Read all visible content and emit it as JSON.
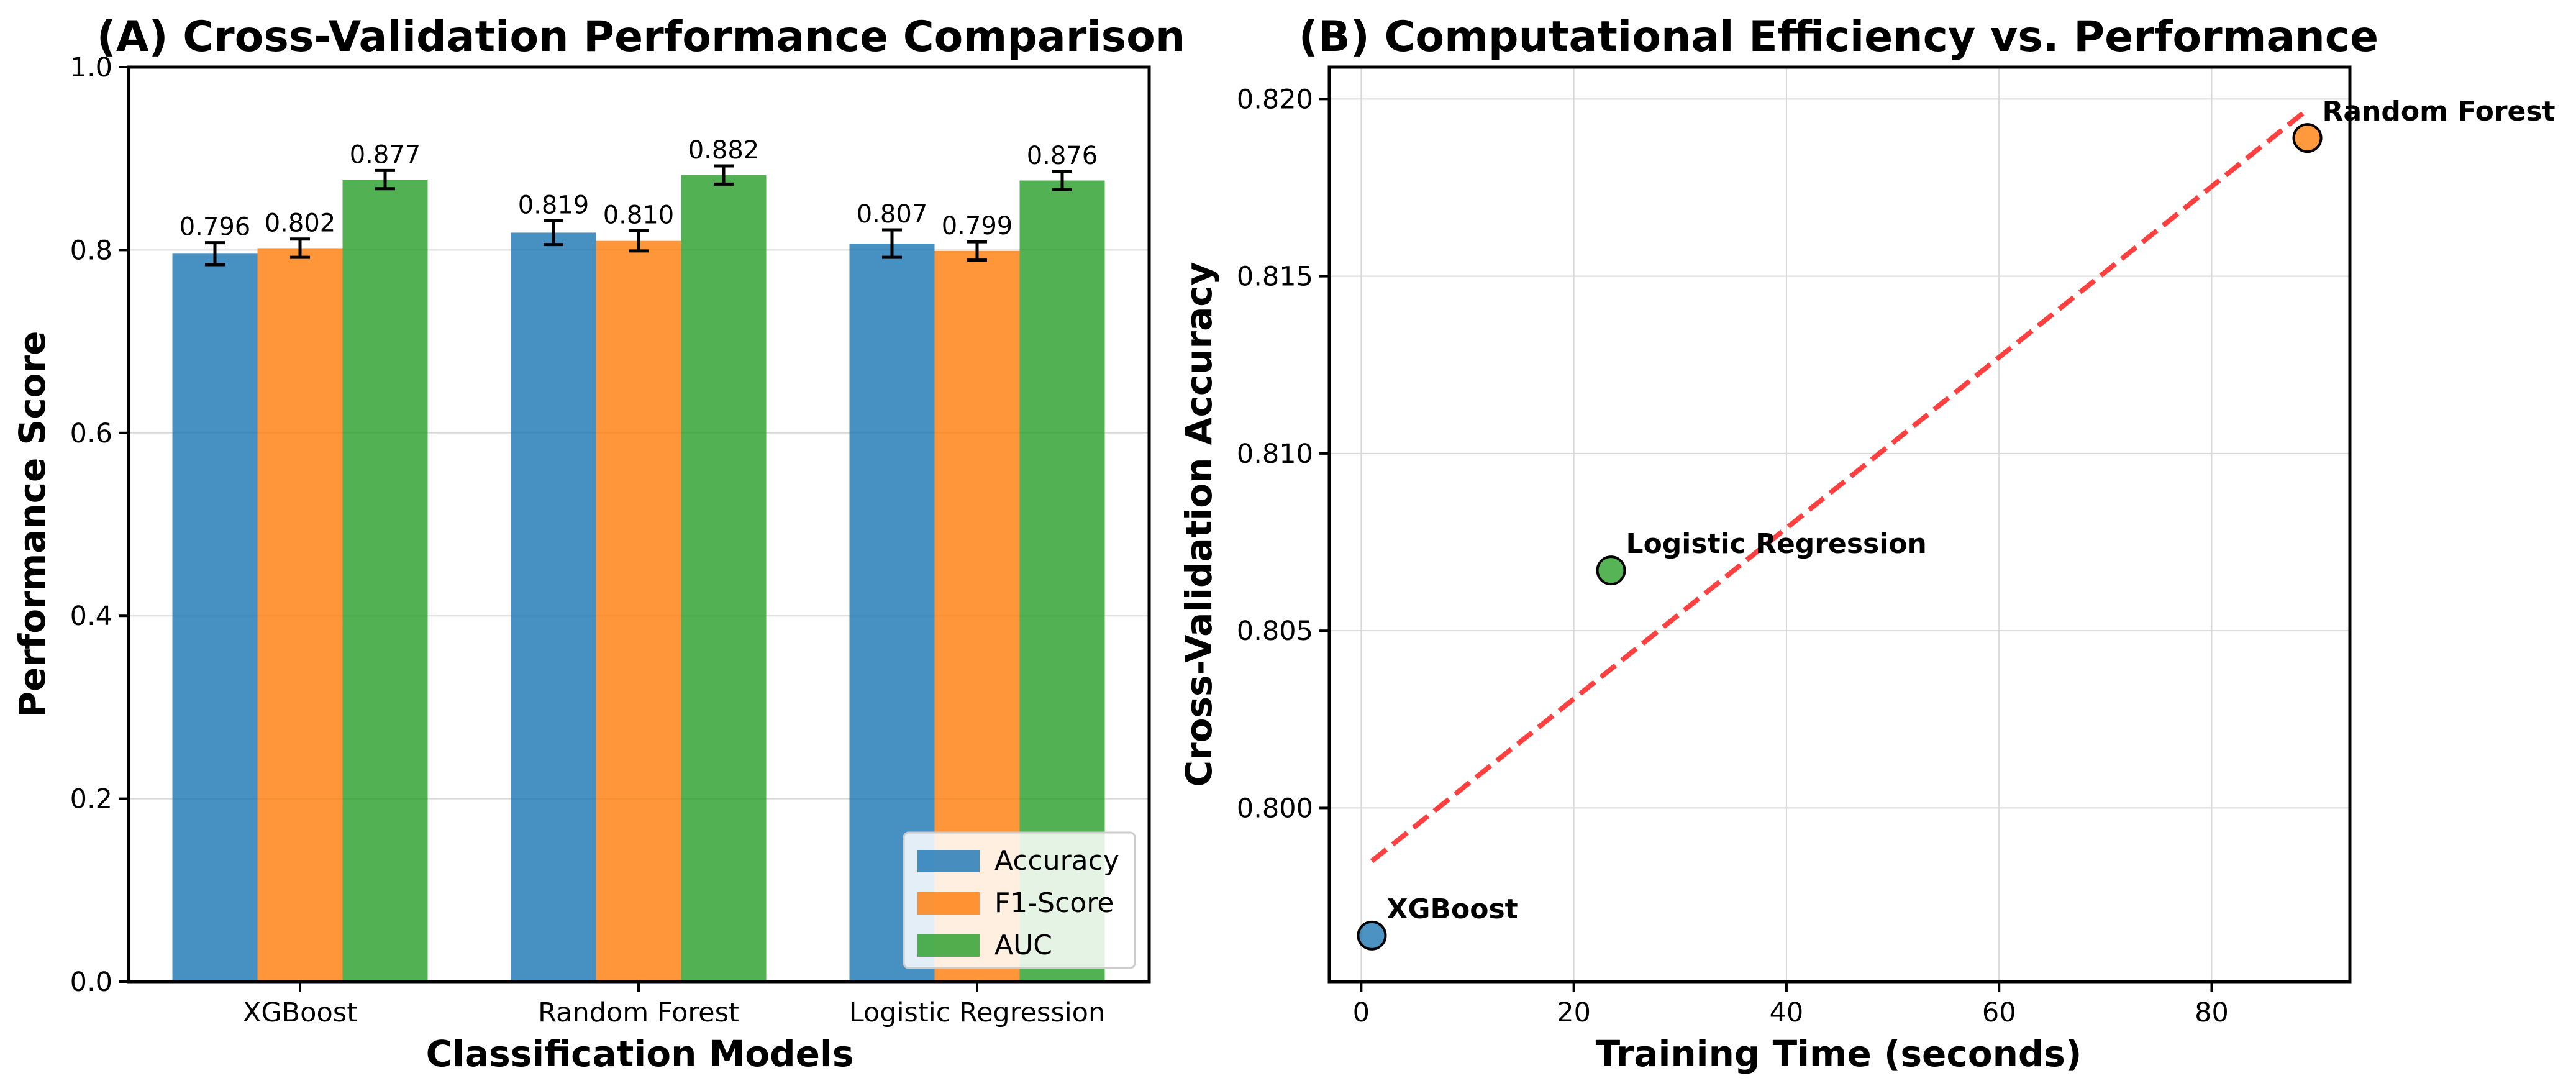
{
  "chart_data": [
    {
      "type": "bar",
      "title": "(A) Cross-Validation Performance Comparison",
      "xlabel": "Classification Models",
      "ylabel": "Performance Score",
      "categories": [
        "XGBoost",
        "Random Forest",
        "Logistic Regression"
      ],
      "ylim": [
        0,
        1.0
      ],
      "yticks": [
        "0.0",
        "0.2",
        "0.4",
        "0.6",
        "0.8",
        "1.0"
      ],
      "grid": true,
      "legend_position": "lower-right",
      "series": [
        {
          "name": "Accuracy",
          "color": "#1f77b4",
          "values": [
            0.796,
            0.819,
            0.807
          ],
          "labels": [
            "0.796",
            "0.819",
            "0.807"
          ],
          "errors": [
            0.012,
            0.013,
            0.015
          ]
        },
        {
          "name": "F1-Score",
          "color": "#ff7f0e",
          "values": [
            0.802,
            0.81,
            0.799
          ],
          "labels": [
            "0.802",
            "0.810",
            "0.799"
          ],
          "errors": [
            0.01,
            0.011,
            0.01
          ]
        },
        {
          "name": "AUC",
          "color": "#2ca02c",
          "values": [
            0.877,
            0.882,
            0.876
          ],
          "labels": [
            "0.877",
            "0.882",
            "0.876"
          ],
          "errors": [
            0.01,
            0.01,
            0.01
          ]
        }
      ]
    },
    {
      "type": "scatter",
      "title": "(B) Computational Efficiency vs. Performance",
      "xlabel": "Training Time (seconds)",
      "ylabel": "Cross-Validation Accuracy",
      "xlim": [
        -3,
        93
      ],
      "ylim": [
        0.7951,
        0.8209
      ],
      "xticks": [
        "0",
        "20",
        "40",
        "60",
        "80"
      ],
      "yticks": [
        "0.800",
        "0.805",
        "0.810",
        "0.815",
        "0.820"
      ],
      "grid": true,
      "points": [
        {
          "label": "XGBoost",
          "x": 1.0,
          "y": 0.7964,
          "color": "#1f77b4"
        },
        {
          "label": "Logistic Regression",
          "x": 23.5,
          "y": 0.8067,
          "color": "#2ca02c"
        },
        {
          "label": "Random Forest",
          "x": 89.0,
          "y": 0.8189,
          "color": "#ff7f0e"
        }
      ],
      "trendline": {
        "x": [
          1.0,
          89.0
        ],
        "y": [
          0.7985,
          0.8197
        ],
        "color": "#ff0000",
        "style": "dashed"
      }
    }
  ]
}
